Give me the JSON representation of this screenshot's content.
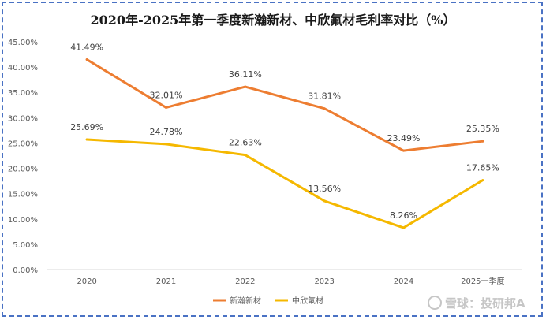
{
  "chart_data": {
    "type": "line",
    "title": "2020年-2025年第一季度新瀚新材、中欣氟材毛利率对比（%）",
    "categories": [
      "2020",
      "2021",
      "2022",
      "2023",
      "2024",
      "2025一季度"
    ],
    "ylim": [
      0,
      45
    ],
    "yticks": [
      "0.00%",
      "5.00%",
      "10.00%",
      "15.00%",
      "20.00%",
      "25.00%",
      "30.00%",
      "35.00%",
      "40.00%",
      "45.00%"
    ],
    "grid": false,
    "legend_position": "bottom",
    "series": [
      {
        "name": "新瀚新材",
        "color": "#ed7d31",
        "values": [
          41.49,
          32.01,
          36.11,
          31.81,
          23.49,
          25.35
        ],
        "labels": [
          "41.49%",
          "32.01%",
          "36.11%",
          "31.81%",
          "23.49%",
          "25.35%"
        ]
      },
      {
        "name": "中欣氟材",
        "color": "#f5b800",
        "values": [
          25.69,
          24.78,
          22.63,
          13.56,
          8.26,
          17.65
        ],
        "labels": [
          "25.69%",
          "24.78%",
          "22.63%",
          "13.56%",
          "8.26%",
          "17.65%"
        ]
      }
    ]
  },
  "watermark": {
    "text": "雪球：投研邦A",
    "icon": "snowball-logo-icon"
  }
}
